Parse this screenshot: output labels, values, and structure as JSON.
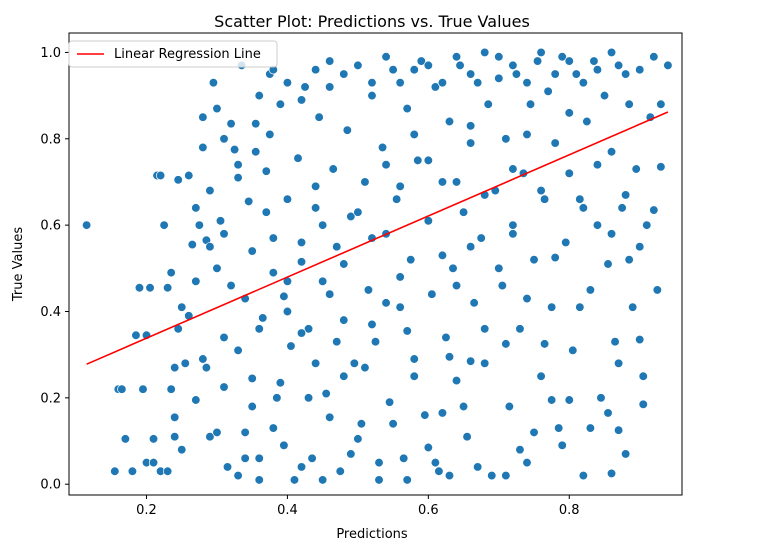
{
  "chart_data": {
    "type": "scatter",
    "title": "Scatter Plot: Predictions vs. True Values",
    "xlabel": "Predictions",
    "ylabel": "True Values",
    "xlim": [
      0.09,
      0.96
    ],
    "ylim": [
      -0.025,
      1.045
    ],
    "xticks": [
      {
        "v": 0.2,
        "label": "0.2"
      },
      {
        "v": 0.4,
        "label": "0.4"
      },
      {
        "v": 0.6,
        "label": "0.6"
      },
      {
        "v": 0.8,
        "label": "0.8"
      }
    ],
    "yticks": [
      {
        "v": 0.0,
        "label": "0.0"
      },
      {
        "v": 0.2,
        "label": "0.2"
      },
      {
        "v": 0.4,
        "label": "0.4"
      },
      {
        "v": 0.6,
        "label": "0.6"
      },
      {
        "v": 0.8,
        "label": "0.8"
      },
      {
        "v": 1.0,
        "label": "1.0"
      }
    ],
    "grid": false,
    "legend_position": "top-left",
    "point_color": "#1f77b4",
    "point_edge_color": "#ffffff",
    "series": [
      {
        "name": "",
        "kind": "points",
        "points": [
          [
            0.115,
            0.6
          ],
          [
            0.155,
            0.03
          ],
          [
            0.16,
            0.22
          ],
          [
            0.17,
            0.105
          ],
          [
            0.185,
            0.345
          ],
          [
            0.19,
            0.455
          ],
          [
            0.195,
            0.22
          ],
          [
            0.2,
            0.345
          ],
          [
            0.2,
            0.05
          ],
          [
            0.205,
            0.455
          ],
          [
            0.21,
            0.105
          ],
          [
            0.215,
            0.715
          ],
          [
            0.22,
            0.715
          ],
          [
            0.22,
            0.03
          ],
          [
            0.225,
            0.6
          ],
          [
            0.23,
            0.455
          ],
          [
            0.235,
            0.49
          ],
          [
            0.235,
            0.22
          ],
          [
            0.24,
            0.155
          ],
          [
            0.245,
            0.705
          ],
          [
            0.25,
            0.41
          ],
          [
            0.255,
            0.28
          ],
          [
            0.26,
            0.715
          ],
          [
            0.265,
            0.555
          ],
          [
            0.27,
            0.195
          ],
          [
            0.275,
            0.6
          ],
          [
            0.28,
            0.85
          ],
          [
            0.285,
            0.565
          ],
          [
            0.29,
            0.11
          ],
          [
            0.295,
            0.93
          ],
          [
            0.3,
            0.87
          ],
          [
            0.3,
            0.5
          ],
          [
            0.305,
            0.61
          ],
          [
            0.31,
            0.34
          ],
          [
            0.315,
            0.04
          ],
          [
            0.32,
            0.835
          ],
          [
            0.325,
            0.775
          ],
          [
            0.33,
            0.71
          ],
          [
            0.335,
            0.97
          ],
          [
            0.34,
            0.12
          ],
          [
            0.345,
            0.655
          ],
          [
            0.35,
            0.245
          ],
          [
            0.355,
            0.835
          ],
          [
            0.36,
            0.06
          ],
          [
            0.365,
            0.385
          ],
          [
            0.37,
            0.725
          ],
          [
            0.375,
            0.95
          ],
          [
            0.38,
            0.57
          ],
          [
            0.385,
            0.2
          ],
          [
            0.39,
            0.88
          ],
          [
            0.395,
            0.435
          ],
          [
            0.4,
            0.66
          ],
          [
            0.405,
            0.32
          ],
          [
            0.41,
            0.01
          ],
          [
            0.415,
            0.755
          ],
          [
            0.42,
            0.515
          ],
          [
            0.425,
            0.92
          ],
          [
            0.43,
            0.36
          ],
          [
            0.435,
            0.06
          ],
          [
            0.44,
            0.64
          ],
          [
            0.445,
            0.85
          ],
          [
            0.45,
            0.47
          ],
          [
            0.455,
            0.21
          ],
          [
            0.46,
            0.98
          ],
          [
            0.465,
            0.73
          ],
          [
            0.47,
            0.55
          ],
          [
            0.475,
            0.03
          ],
          [
            0.48,
            0.38
          ],
          [
            0.485,
            0.82
          ],
          [
            0.49,
            0.62
          ],
          [
            0.495,
            0.28
          ],
          [
            0.5,
            0.97
          ],
          [
            0.505,
            0.14
          ],
          [
            0.51,
            0.7
          ],
          [
            0.515,
            0.45
          ],
          [
            0.52,
            0.9
          ],
          [
            0.525,
            0.33
          ],
          [
            0.53,
            0.01
          ],
          [
            0.535,
            0.78
          ],
          [
            0.54,
            0.58
          ],
          [
            0.545,
            0.19
          ],
          [
            0.55,
            0.96
          ],
          [
            0.555,
            0.66
          ],
          [
            0.56,
            0.41
          ],
          [
            0.565,
            0.06
          ],
          [
            0.57,
            0.87
          ],
          [
            0.575,
            0.52
          ],
          [
            0.58,
            0.29
          ],
          [
            0.585,
            0.75
          ],
          [
            0.59,
            0.98
          ],
          [
            0.595,
            0.16
          ],
          [
            0.6,
            0.61
          ],
          [
            0.605,
            0.44
          ],
          [
            0.61,
            0.92
          ],
          [
            0.615,
            0.03
          ],
          [
            0.62,
            0.7
          ],
          [
            0.625,
            0.34
          ],
          [
            0.63,
            0.84
          ],
          [
            0.635,
            0.5
          ],
          [
            0.64,
            0.24
          ],
          [
            0.645,
            0.97
          ],
          [
            0.65,
            0.63
          ],
          [
            0.655,
            0.11
          ],
          [
            0.66,
            0.79
          ],
          [
            0.665,
            0.42
          ],
          [
            0.67,
            0.93
          ],
          [
            0.675,
            0.57
          ],
          [
            0.68,
            0.28
          ],
          [
            0.685,
            0.88
          ],
          [
            0.69,
            0.02
          ],
          [
            0.695,
            0.68
          ],
          [
            0.7,
            0.99
          ],
          [
            0.705,
            0.46
          ],
          [
            0.71,
            0.8
          ],
          [
            0.715,
            0.18
          ],
          [
            0.72,
            0.6
          ],
          [
            0.725,
            0.95
          ],
          [
            0.73,
            0.36
          ],
          [
            0.735,
            0.72
          ],
          [
            0.74,
            0.05
          ],
          [
            0.745,
            0.88
          ],
          [
            0.75,
            0.52
          ],
          [
            0.755,
            0.98
          ],
          [
            0.76,
            0.25
          ],
          [
            0.765,
            0.66
          ],
          [
            0.77,
            0.91
          ],
          [
            0.775,
            0.41
          ],
          [
            0.78,
            0.79
          ],
          [
            0.785,
            0.13
          ],
          [
            0.79,
            0.99
          ],
          [
            0.795,
            0.56
          ],
          [
            0.8,
            0.86
          ],
          [
            0.805,
            0.31
          ],
          [
            0.81,
            0.95
          ],
          [
            0.815,
            0.66
          ],
          [
            0.82,
            0.02
          ],
          [
            0.825,
            0.84
          ],
          [
            0.83,
            0.45
          ],
          [
            0.835,
            0.98
          ],
          [
            0.84,
            0.6
          ],
          [
            0.845,
            0.2
          ],
          [
            0.85,
            0.9
          ],
          [
            0.855,
            0.51
          ],
          [
            0.86,
            0.77
          ],
          [
            0.865,
            0.33
          ],
          [
            0.87,
            0.97
          ],
          [
            0.875,
            0.64
          ],
          [
            0.88,
            0.07
          ],
          [
            0.885,
            0.88
          ],
          [
            0.89,
            0.41
          ],
          [
            0.895,
            0.73
          ],
          [
            0.9,
            0.96
          ],
          [
            0.905,
            0.25
          ],
          [
            0.91,
            0.6
          ],
          [
            0.915,
            0.85
          ],
          [
            0.92,
            0.99
          ],
          [
            0.925,
            0.45
          ],
          [
            0.93,
            0.88
          ],
          [
            0.94,
            0.97
          ],
          [
            0.9,
            0.335
          ],
          [
            0.905,
            0.185
          ],
          [
            0.92,
            0.635
          ],
          [
            0.93,
            0.735
          ],
          [
            0.885,
            0.52
          ],
          [
            0.86,
            0.025
          ],
          [
            0.855,
            0.165
          ],
          [
            0.87,
            0.28
          ],
          [
            0.79,
            0.09
          ],
          [
            0.8,
            0.195
          ],
          [
            0.815,
            0.41
          ],
          [
            0.765,
            0.325
          ],
          [
            0.775,
            0.195
          ],
          [
            0.78,
            0.525
          ],
          [
            0.71,
            0.325
          ],
          [
            0.73,
            0.08
          ],
          [
            0.74,
            0.43
          ],
          [
            0.65,
            0.18
          ],
          [
            0.66,
            0.285
          ],
          [
            0.68,
            0.36
          ],
          [
            0.6,
            0.085
          ],
          [
            0.62,
            0.165
          ],
          [
            0.63,
            0.295
          ],
          [
            0.55,
            0.14
          ],
          [
            0.57,
            0.355
          ],
          [
            0.58,
            0.25
          ],
          [
            0.5,
            0.105
          ],
          [
            0.51,
            0.27
          ],
          [
            0.52,
            0.37
          ],
          [
            0.46,
            0.155
          ],
          [
            0.47,
            0.33
          ],
          [
            0.48,
            0.25
          ],
          [
            0.42,
            0.04
          ],
          [
            0.43,
            0.2
          ],
          [
            0.44,
            0.28
          ],
          [
            0.38,
            0.13
          ],
          [
            0.39,
            0.235
          ],
          [
            0.4,
            0.4
          ],
          [
            0.34,
            0.06
          ],
          [
            0.35,
            0.18
          ],
          [
            0.36,
            0.36
          ],
          [
            0.3,
            0.12
          ],
          [
            0.31,
            0.225
          ],
          [
            0.32,
            0.46
          ],
          [
            0.26,
            0.39
          ],
          [
            0.27,
            0.47
          ],
          [
            0.28,
            0.29
          ],
          [
            0.35,
            0.54
          ],
          [
            0.37,
            0.63
          ],
          [
            0.38,
            0.49
          ],
          [
            0.42,
            0.56
          ],
          [
            0.44,
            0.69
          ],
          [
            0.45,
            0.6
          ],
          [
            0.5,
            0.63
          ],
          [
            0.52,
            0.57
          ],
          [
            0.54,
            0.74
          ],
          [
            0.56,
            0.69
          ],
          [
            0.58,
            0.81
          ],
          [
            0.6,
            0.75
          ],
          [
            0.64,
            0.7
          ],
          [
            0.66,
            0.83
          ],
          [
            0.68,
            0.67
          ],
          [
            0.72,
            0.73
          ],
          [
            0.74,
            0.81
          ],
          [
            0.76,
            0.68
          ],
          [
            0.8,
            0.72
          ],
          [
            0.82,
            0.64
          ],
          [
            0.84,
            0.74
          ],
          [
            0.86,
            0.58
          ],
          [
            0.88,
            0.67
          ],
          [
            0.9,
            0.55
          ],
          [
            0.62,
            0.53
          ],
          [
            0.64,
            0.46
          ],
          [
            0.7,
            0.5
          ],
          [
            0.72,
            0.58
          ],
          [
            0.66,
            0.55
          ],
          [
            0.54,
            0.42
          ],
          [
            0.56,
            0.48
          ],
          [
            0.46,
            0.44
          ],
          [
            0.48,
            0.51
          ],
          [
            0.4,
            0.47
          ],
          [
            0.42,
            0.35
          ],
          [
            0.33,
            0.31
          ],
          [
            0.34,
            0.43
          ],
          [
            0.29,
            0.55
          ],
          [
            0.31,
            0.58
          ],
          [
            0.24,
            0.27
          ],
          [
            0.25,
            0.08
          ],
          [
            0.23,
            0.03
          ],
          [
            0.21,
            0.05
          ],
          [
            0.245,
            0.36
          ],
          [
            0.18,
            0.03
          ],
          [
            0.165,
            0.22
          ],
          [
            0.24,
            0.11
          ],
          [
            0.285,
            0.27
          ],
          [
            0.33,
            0.02
          ],
          [
            0.36,
            0.01
          ],
          [
            0.395,
            0.09
          ],
          [
            0.45,
            0.01
          ],
          [
            0.49,
            0.07
          ],
          [
            0.53,
            0.05
          ],
          [
            0.57,
            0.01
          ],
          [
            0.61,
            0.05
          ],
          [
            0.63,
            0.02
          ],
          [
            0.67,
            0.04
          ],
          [
            0.71,
            0.02
          ],
          [
            0.75,
            0.12
          ],
          [
            0.83,
            0.13
          ],
          [
            0.87,
            0.125
          ],
          [
            0.6,
            0.97
          ],
          [
            0.62,
            0.93
          ],
          [
            0.64,
            0.99
          ],
          [
            0.66,
            0.95
          ],
          [
            0.68,
            1.0
          ],
          [
            0.7,
            0.94
          ],
          [
            0.72,
            0.97
          ],
          [
            0.74,
            0.93
          ],
          [
            0.76,
            1.0
          ],
          [
            0.78,
            0.95
          ],
          [
            0.8,
            0.98
          ],
          [
            0.82,
            0.93
          ],
          [
            0.84,
            0.96
          ],
          [
            0.86,
            1.0
          ],
          [
            0.88,
            0.95
          ],
          [
            0.56,
            0.93
          ],
          [
            0.58,
            0.96
          ],
          [
            0.54,
            0.99
          ],
          [
            0.52,
            0.93
          ],
          [
            0.48,
            0.95
          ],
          [
            0.46,
            0.92
          ],
          [
            0.44,
            0.96
          ],
          [
            0.42,
            0.89
          ],
          [
            0.4,
            0.93
          ],
          [
            0.38,
            0.96
          ],
          [
            0.36,
            0.9
          ],
          [
            0.375,
            0.81
          ],
          [
            0.355,
            0.77
          ],
          [
            0.31,
            0.8
          ],
          [
            0.33,
            0.74
          ],
          [
            0.29,
            0.68
          ],
          [
            0.28,
            0.78
          ],
          [
            0.27,
            0.64
          ]
        ]
      },
      {
        "name": "Linear Regression Line",
        "kind": "line",
        "color": "#ff0000",
        "points": [
          [
            0.115,
            0.278
          ],
          [
            0.94,
            0.862
          ]
        ]
      }
    ]
  }
}
